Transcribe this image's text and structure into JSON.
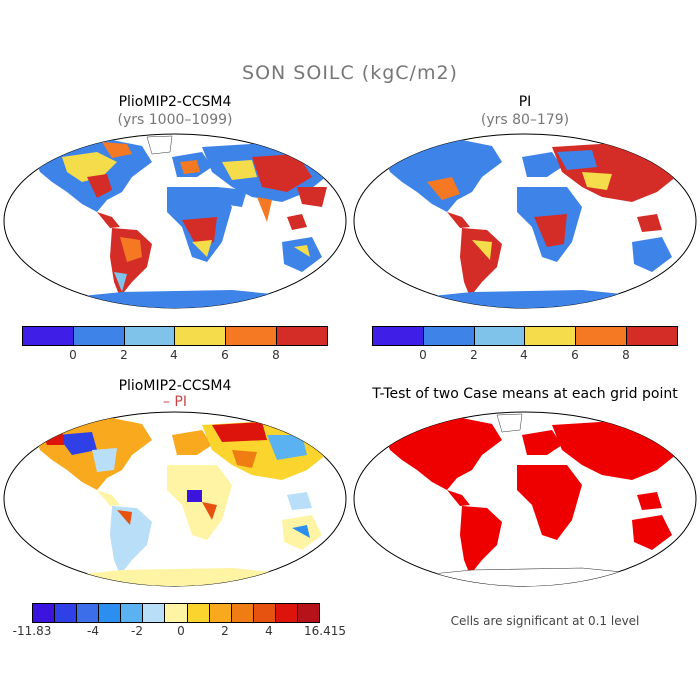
{
  "main_title": "SON SOILC (kgC/m2)",
  "panels": [
    {
      "title": "PlioMIP2-CCSM4",
      "subtitle": "(yrs 1000–1099)"
    },
    {
      "title": "PI",
      "subtitle": "(yrs 80–179)"
    },
    {
      "title": "PlioMIP2-CCSM4",
      "subtitle": "– PI"
    },
    {
      "title": "T-Test of two Case means at each grid point",
      "subtitle": ""
    }
  ],
  "colorbar_top": {
    "colors": [
      "#3f1fe8",
      "#3e83e8",
      "#7fc2ea",
      "#f5dc4a",
      "#f57823",
      "#d42d27"
    ],
    "labels": [
      "0",
      "2",
      "4",
      "6",
      "8"
    ]
  },
  "colorbar_diff": {
    "colors": [
      "#3b15dd",
      "#2f41e6",
      "#3b6ee8",
      "#2c8ff0",
      "#5bb2f0",
      "#b8dff7",
      "#fff4a3",
      "#fbd42e",
      "#f8a91e",
      "#f07c14",
      "#e6520f",
      "#dc140c",
      "#b5121a"
    ],
    "labels": [
      "-11.83",
      "-4",
      "-2",
      "0",
      "2",
      "4",
      "16.415"
    ]
  },
  "footnote": "Cells are significant at 0.1 level"
}
